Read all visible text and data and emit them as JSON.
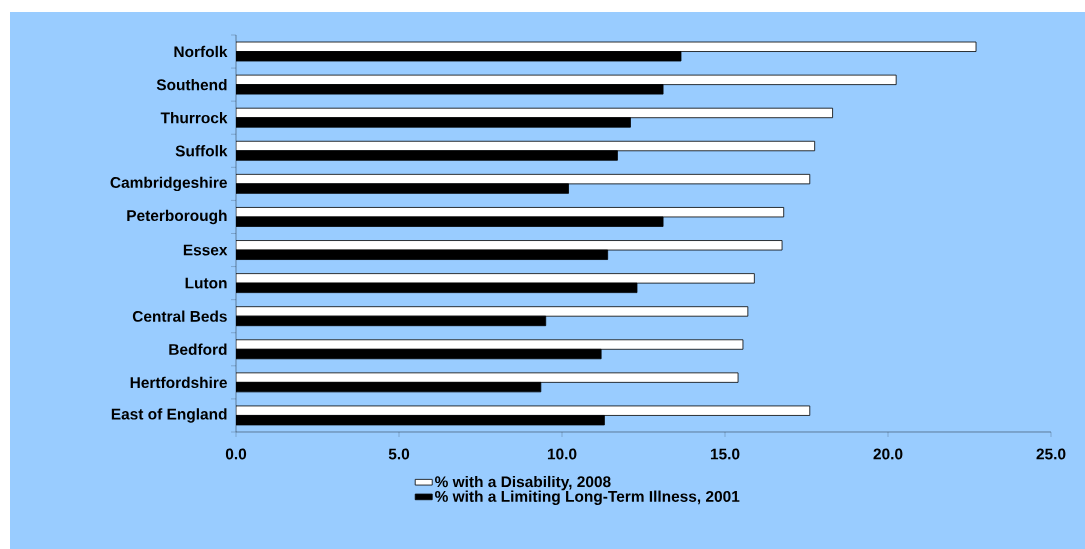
{
  "chart_data": {
    "type": "bar",
    "orientation": "horizontal",
    "categories": [
      "Norfolk",
      "Southend",
      "Thurrock",
      "Suffolk",
      "Cambridgeshire",
      "Peterborough",
      "Essex",
      "Luton",
      "Central Beds",
      "Bedford",
      "Hertfordshire",
      "East of England"
    ],
    "series": [
      {
        "name": "% with a Disability, 2008",
        "color": "#ffffff",
        "values": [
          22.7,
          20.25,
          18.3,
          17.75,
          17.6,
          16.8,
          16.75,
          15.9,
          15.7,
          15.55,
          15.4,
          17.6
        ]
      },
      {
        "name": "% with a Limiting Long-Term Illness, 2001",
        "color": "#000000",
        "values": [
          13.65,
          13.1,
          12.1,
          11.7,
          10.2,
          13.1,
          11.4,
          12.3,
          9.5,
          11.2,
          9.35,
          11.3
        ]
      }
    ],
    "xlim": [
      0,
      25
    ],
    "xticks": [
      {
        "value": 0,
        "label": "0.0"
      },
      {
        "value": 5,
        "label": "5.0"
      },
      {
        "value": 10,
        "label": "10.0"
      },
      {
        "value": 15,
        "label": "15.0"
      },
      {
        "value": 20,
        "label": "20.0"
      },
      {
        "value": 25,
        "label": "25.0"
      }
    ],
    "grid": false,
    "legend": "bottom"
  }
}
